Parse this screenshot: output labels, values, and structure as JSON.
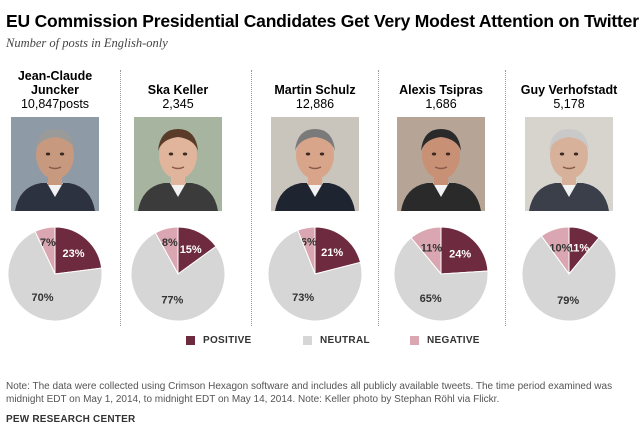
{
  "title": "EU Commission Presidential Candidates Get Very Modest Attention on Twitter",
  "subtitle": "Number of posts in English-only",
  "colors": {
    "positive": "#6e2b3f",
    "neutral": "#d6d6d6",
    "negative": "#d9a6b1",
    "divider": "#9a9a9a"
  },
  "chart_data": {
    "type": "pie",
    "slice_order": [
      "Positive",
      "Negative",
      "Neutral"
    ],
    "candidates": [
      {
        "name_lines": [
          "Jean-Claude",
          "Juncker"
        ],
        "posts": "10,847posts",
        "positive": 23,
        "neutral": 70,
        "negative": 7
      },
      {
        "name_lines": [
          "Ska Keller"
        ],
        "posts": "2,345",
        "positive": 15,
        "neutral": 77,
        "negative": 8
      },
      {
        "name_lines": [
          "Martin Schulz"
        ],
        "posts": "12,886",
        "positive": 21,
        "neutral": 73,
        "negative": 6
      },
      {
        "name_lines": [
          "Alexis Tsipras"
        ],
        "posts": "1,686",
        "positive": 24,
        "neutral": 65,
        "negative": 11
      },
      {
        "name_lines": [
          "Guy Verhofstadt"
        ],
        "posts": "5,178",
        "positive": 11,
        "neutral": 79,
        "negative": 10
      }
    ],
    "legend": [
      {
        "key": "positive",
        "label": "POSITIVE"
      },
      {
        "key": "neutral",
        "label": "NEUTRAL"
      },
      {
        "key": "negative",
        "label": "NEGATIVE"
      }
    ]
  },
  "note": "Note: The data were collected using Crimson Hexagon software and includes all publicly available tweets. The time period examined was midnight EDT on May 1, 2014, to midnight EDT on May 14, 2014. Note: Keller photo by Stephan Röhl via Flickr.",
  "source": "PEW RESEARCH CENTER"
}
